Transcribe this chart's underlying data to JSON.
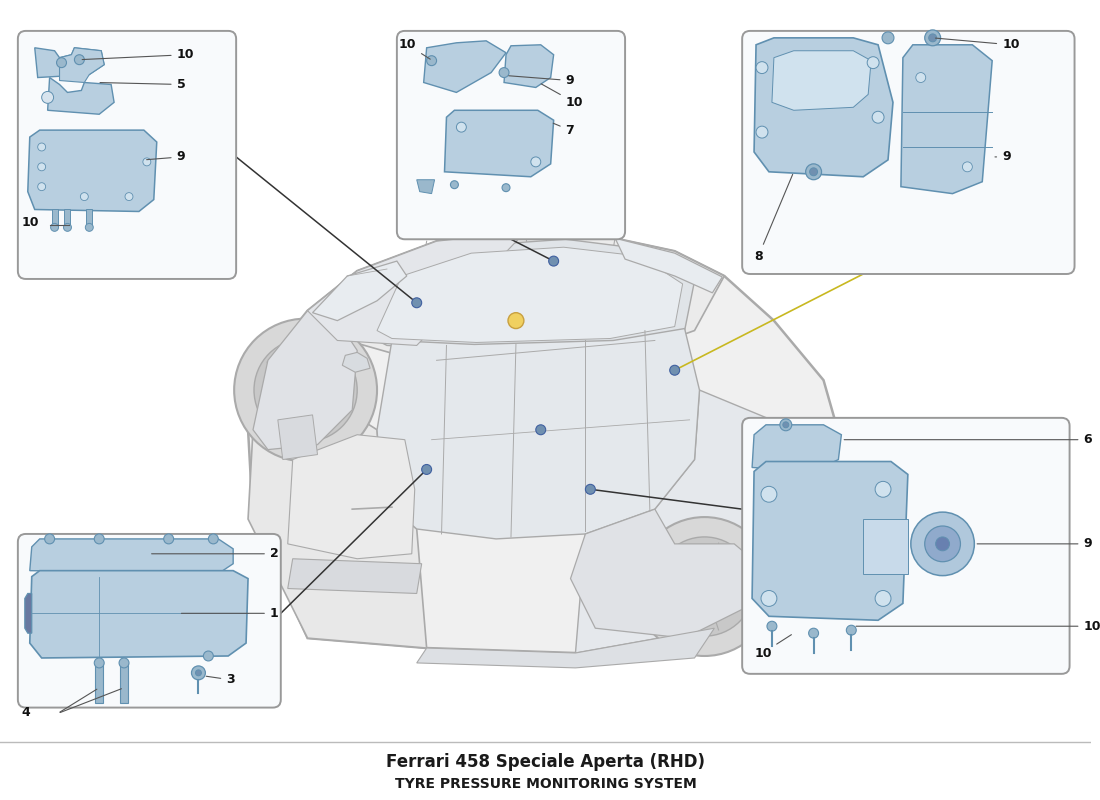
{
  "title": "Ferrari 458 Speciale Aperta (RHD)",
  "subtitle": "TYRE PRESSURE MONITORING SYSTEM",
  "bg": "#ffffff",
  "part_fill": "#b8cfe0",
  "part_edge": "#6090b0",
  "box_fill": "#f8fafc",
  "box_edge": "#999999",
  "car_line": "#aaaaaa",
  "car_fill": "#f0f0f0",
  "label_fs": 9,
  "title_fs": 12,
  "sub_fs": 10,
  "wm1_color": "#cccccc",
  "wm2_color": "#dde8a0",
  "line_color": "#333333",
  "gold_line": "#c8b820"
}
